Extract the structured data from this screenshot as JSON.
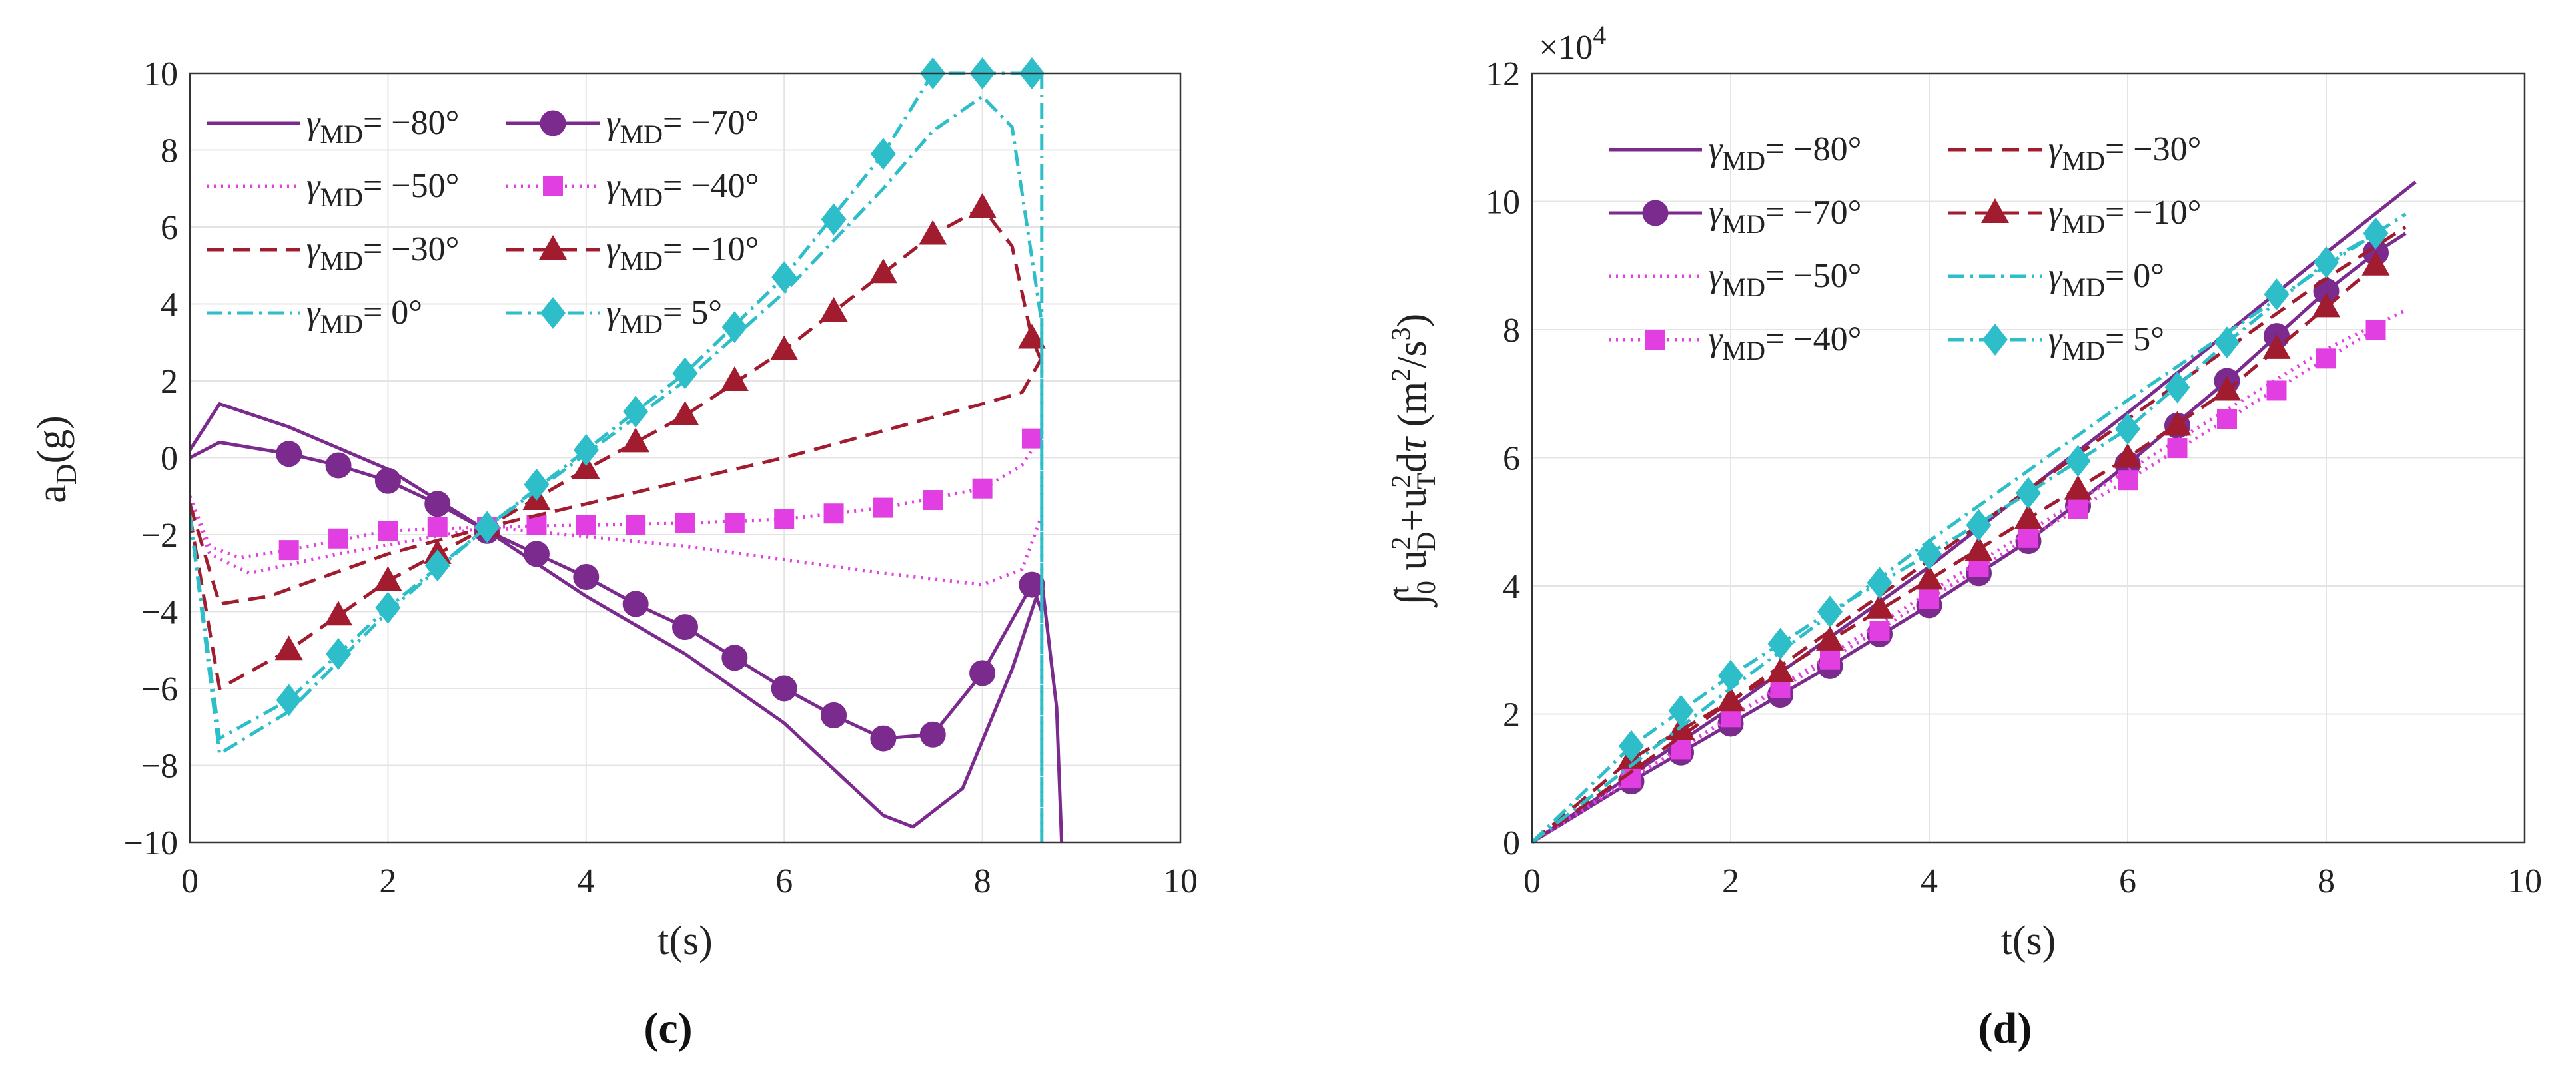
{
  "chart_data": [
    {
      "panel": "c",
      "type": "line",
      "ylabel": "a_D(g)",
      "xlabel": "t(s)",
      "xlim": [
        0,
        10
      ],
      "ylim": [
        -10,
        10
      ],
      "xticks": [
        "0",
        "2",
        "4",
        "6",
        "8",
        "10"
      ],
      "yticks": [
        "10",
        "8",
        "6",
        "4",
        "2",
        "0",
        "−2",
        "−4",
        "−6",
        "−8",
        "−10"
      ],
      "grid": true,
      "legend_position": "top-left",
      "series": [
        {
          "key": "m80",
          "name": "= −80°",
          "color": "#7B2A8E",
          "dash": "",
          "marker": "none",
          "x": [
            0,
            0.3,
            1,
            2,
            3,
            4,
            5,
            6,
            7,
            7.3,
            7.8,
            8.3,
            8.6,
            8.75,
            8.8
          ],
          "y": [
            0.2,
            1.4,
            0.8,
            -0.3,
            -1.9,
            -3.6,
            -5.1,
            -6.9,
            -9.3,
            -9.6,
            -8.6,
            -5.5,
            -3.2,
            -6.5,
            -10
          ]
        },
        {
          "key": "m70",
          "name": "= −70°",
          "color": "#7B2A8E",
          "dash": "",
          "marker": "circle",
          "x": [
            0,
            0.3,
            1,
            1.5,
            2,
            2.5,
            3,
            3.5,
            4,
            4.5,
            5,
            5.5,
            6,
            6.5,
            7,
            7.5,
            8,
            8.5,
            8.6
          ],
          "y": [
            0,
            0.4,
            0.1,
            -0.2,
            -0.6,
            -1.2,
            -1.9,
            -2.5,
            -3.1,
            -3.8,
            -4.4,
            -5.2,
            -6,
            -6.7,
            -7.3,
            -7.2,
            -5.6,
            -3.3,
            -4
          ],
          "mx": [
            1,
            1.5,
            2,
            2.5,
            3,
            3.5,
            4,
            4.5,
            5,
            5.5,
            6,
            6.5,
            7,
            7.5,
            8,
            8.5
          ],
          "my": [
            0.1,
            -0.2,
            -0.6,
            -1.2,
            -1.9,
            -2.5,
            -3.1,
            -3.8,
            -4.4,
            -5.2,
            -6,
            -6.7,
            -7.3,
            -7.2,
            -5.6,
            -3.3
          ]
        },
        {
          "key": "m50",
          "name": "= −50°",
          "color": "#E23FE3",
          "dash": "3 8",
          "marker": "none",
          "x": [
            0,
            0.2,
            0.6,
            1.5,
            3,
            5,
            7,
            8,
            8.4,
            8.6
          ],
          "y": [
            -1,
            -2.5,
            -3,
            -2.5,
            -1.8,
            -2.3,
            -3,
            -3.3,
            -2.9,
            -1.5
          ]
        },
        {
          "key": "m40",
          "name": "= −40°",
          "color": "#E23FE3",
          "dash": "3 8",
          "marker": "square",
          "x": [
            0,
            0.2,
            0.5,
            1,
            2,
            3,
            4,
            5,
            6,
            7,
            8,
            8.4,
            8.6
          ],
          "y": [
            -1,
            -2.3,
            -2.6,
            -2.4,
            -1.9,
            -1.8,
            -1.75,
            -1.7,
            -1.6,
            -1.3,
            -0.8,
            -0.2,
            0.6
          ],
          "mx": [
            1,
            1.5,
            2,
            2.5,
            3,
            3.5,
            4,
            4.5,
            5,
            5.5,
            6,
            6.5,
            7,
            7.5,
            8,
            8.5
          ],
          "my": [
            -2.4,
            -2.1,
            -1.9,
            -1.8,
            -1.8,
            -1.75,
            -1.75,
            -1.75,
            -1.7,
            -1.7,
            -1.6,
            -1.45,
            -1.3,
            -1.1,
            -0.8,
            0.5
          ]
        },
        {
          "key": "m30",
          "name": "= −30°",
          "color": "#A01C2E",
          "dash": "26 14",
          "marker": "none",
          "x": [
            0,
            0.3,
            0.8,
            2,
            3,
            4,
            5,
            6,
            7,
            8,
            8.4,
            8.6
          ],
          "y": [
            -1.2,
            -3.8,
            -3.6,
            -2.5,
            -1.8,
            -1.2,
            -0.6,
            0,
            0.7,
            1.4,
            1.7,
            2.6
          ]
        },
        {
          "key": "m10",
          "name": "= −10°",
          "color": "#A01C2E",
          "dash": "26 14",
          "marker": "triangle",
          "x": [
            0,
            0.3,
            1,
            2,
            3,
            4,
            5,
            6,
            7,
            7.5,
            8,
            8.3,
            8.5,
            8.6
          ],
          "y": [
            -1.5,
            -6,
            -5,
            -3.2,
            -1.8,
            -0.3,
            1.1,
            2.8,
            4.8,
            5.8,
            6.5,
            5.5,
            3.1,
            2.5
          ],
          "mx": [
            1,
            1.5,
            2,
            2.5,
            3,
            3.5,
            4,
            4.5,
            5,
            5.5,
            6,
            6.5,
            7,
            7.5,
            8,
            8.5
          ],
          "my": [
            -5,
            -4.1,
            -3.2,
            -2.5,
            -1.8,
            -1.1,
            -0.3,
            0.4,
            1.1,
            2,
            2.8,
            3.8,
            4.8,
            5.8,
            6.5,
            3.1
          ]
        },
        {
          "key": "z0",
          "name": "= 0°",
          "color": "#2EBEC9",
          "dash": "24 9 4 9",
          "marker": "none",
          "x": [
            0,
            0.3,
            1,
            2,
            3,
            4,
            5,
            6,
            7,
            7.5,
            8,
            8.3,
            8.6,
            8.6
          ],
          "y": [
            -1.5,
            -7.7,
            -6.6,
            -4,
            -1.8,
            0.1,
            2,
            4.3,
            7,
            8.5,
            9.4,
            8.6,
            3.5,
            -10
          ]
        },
        {
          "key": "p5",
          "name": "= 5°",
          "color": "#2EBEC9",
          "dash": "24 9 4 9",
          "marker": "diamond",
          "x": [
            0,
            0.3,
            1,
            2,
            3,
            4,
            5,
            6,
            7,
            7.5,
            8,
            8.5,
            8.6,
            8.6
          ],
          "y": [
            -1.5,
            -7.3,
            -6.3,
            -3.9,
            -1.8,
            0.2,
            2.2,
            4.7,
            7.9,
            10,
            10,
            10,
            10,
            -10
          ],
          "mx": [
            1,
            1.5,
            2,
            2.5,
            3,
            3.5,
            4,
            4.5,
            5,
            5.5,
            6,
            6.5,
            7,
            7.5,
            8,
            8.5
          ],
          "my": [
            -6.3,
            -5.1,
            -3.9,
            -2.8,
            -1.8,
            -0.7,
            0.2,
            1.2,
            2.2,
            3.4,
            4.7,
            6.2,
            7.9,
            10,
            10,
            10
          ]
        }
      ],
      "legend": [
        [
          "m80",
          "m70"
        ],
        [
          "m50",
          "m40"
        ],
        [
          "m30",
          "m10"
        ],
        [
          "z0",
          "p5"
        ]
      ]
    },
    {
      "panel": "d",
      "type": "line",
      "ylabel": "∫_0^t u_D^2 + u_T^2 dτ (m^2/s^3)",
      "xlabel": "t(s)",
      "xlim": [
        0,
        10
      ],
      "ylim": [
        0,
        12
      ],
      "y_multiplier": "×10^4",
      "xticks": [
        "0",
        "2",
        "4",
        "6",
        "8",
        "10"
      ],
      "yticks": [
        "12",
        "10",
        "8",
        "6",
        "4",
        "2",
        "0"
      ],
      "grid": true,
      "legend_position": "top-left",
      "series": [
        {
          "key": "m80",
          "name": "= −80°",
          "color": "#7B2A8E",
          "dash": "",
          "marker": "none",
          "x": [
            0,
            2,
            4,
            6,
            8,
            8.9
          ],
          "y": [
            0,
            2.1,
            4.3,
            6.7,
            9.2,
            10.3
          ]
        },
        {
          "key": "m70",
          "name": "= −70°",
          "color": "#7B2A8E",
          "dash": "",
          "marker": "circle",
          "x": [
            0,
            1,
            2,
            3,
            4,
            5,
            6,
            7,
            8,
            8.5,
            8.8
          ],
          "y": [
            0,
            0.95,
            1.85,
            2.75,
            3.7,
            4.7,
            5.9,
            7.2,
            8.6,
            9.2,
            9.5
          ],
          "mx": [
            1,
            1.5,
            2,
            2.5,
            3,
            3.5,
            4,
            4.5,
            5,
            5.5,
            6,
            6.5,
            7,
            7.5,
            8,
            8.5
          ],
          "my": [
            0.95,
            1.4,
            1.85,
            2.3,
            2.75,
            3.25,
            3.7,
            4.2,
            4.7,
            5.25,
            5.9,
            6.5,
            7.2,
            7.9,
            8.6,
            9.2
          ]
        },
        {
          "key": "m50",
          "name": "= −50°",
          "color": "#E23FE3",
          "dash": "3 8",
          "marker": "none",
          "x": [
            0,
            2,
            4,
            6,
            8,
            8.8
          ],
          "y": [
            0,
            1.95,
            3.9,
            5.8,
            7.7,
            8.3
          ]
        },
        {
          "key": "m40",
          "name": "= −40°",
          "color": "#E23FE3",
          "dash": "3 8",
          "marker": "square",
          "x": [
            0,
            1,
            2,
            3,
            4,
            5,
            6,
            7,
            8,
            8.5
          ],
          "y": [
            0,
            1,
            1.95,
            2.85,
            3.8,
            4.75,
            5.65,
            6.6,
            7.55,
            8
          ],
          "mx": [
            1,
            1.5,
            2,
            2.5,
            3,
            3.5,
            4,
            4.5,
            5,
            5.5,
            6,
            6.5,
            7,
            7.5,
            8,
            8.5
          ],
          "my": [
            1,
            1.45,
            1.95,
            2.4,
            2.85,
            3.3,
            3.8,
            4.3,
            4.75,
            5.2,
            5.65,
            6.15,
            6.6,
            7.05,
            7.55,
            8
          ]
        },
        {
          "key": "m30",
          "name": "= −30°",
          "color": "#A01C2E",
          "dash": "26 14",
          "marker": "none",
          "x": [
            0,
            2,
            4,
            6,
            8,
            8.8
          ],
          "y": [
            0,
            2.2,
            4.4,
            6.6,
            8.8,
            9.6
          ]
        },
        {
          "key": "m10",
          "name": "= −10°",
          "color": "#A01C2E",
          "dash": "26 14",
          "marker": "triangle",
          "x": [
            0,
            1,
            2,
            3,
            4,
            5,
            6,
            7,
            8,
            8.5
          ],
          "y": [
            0,
            1.3,
            2.2,
            3.15,
            4.1,
            5.05,
            6,
            7.05,
            8.35,
            9
          ],
          "mx": [
            1,
            1.5,
            2,
            2.5,
            3,
            3.5,
            4,
            4.5,
            5,
            5.5,
            6,
            6.5,
            7,
            7.5,
            8,
            8.5
          ],
          "my": [
            1.3,
            1.75,
            2.2,
            2.65,
            3.15,
            3.65,
            4.1,
            4.55,
            5.05,
            5.5,
            6,
            6.5,
            7.05,
            7.7,
            8.35,
            9
          ]
        },
        {
          "key": "z0",
          "name": "= 0°",
          "color": "#2EBEC9",
          "dash": "24 9 4 9",
          "marker": "none",
          "x": [
            0,
            2,
            4,
            6,
            8,
            8.8
          ],
          "y": [
            0,
            2.4,
            4.7,
            6.9,
            9,
            9.8
          ]
        },
        {
          "key": "p5",
          "name": "= 5°",
          "color": "#2EBEC9",
          "dash": "24 9 4 9",
          "marker": "diamond",
          "x": [
            0,
            1,
            2,
            3,
            4,
            5,
            6,
            7,
            8,
            8.5
          ],
          "y": [
            0,
            1.5,
            2.6,
            3.6,
            4.5,
            5.45,
            6.45,
            7.8,
            9.05,
            9.5
          ],
          "mx": [
            1,
            1.5,
            2,
            2.5,
            3,
            3.5,
            4,
            4.5,
            5,
            5.5,
            6,
            6.5,
            7,
            7.5,
            8,
            8.5
          ],
          "my": [
            1.5,
            2.05,
            2.6,
            3.1,
            3.6,
            4.05,
            4.5,
            4.95,
            5.45,
            5.95,
            6.45,
            7.1,
            7.8,
            8.55,
            9.05,
            9.5
          ]
        }
      ],
      "legend": [
        [
          "m80",
          "m30"
        ],
        [
          "m70",
          "m10"
        ],
        [
          "m50",
          "z0"
        ],
        [
          "m40",
          "p5"
        ]
      ]
    }
  ],
  "labels": {
    "c_panel": "(c)",
    "d_panel": "(d)",
    "gamma_sub": "MD"
  }
}
